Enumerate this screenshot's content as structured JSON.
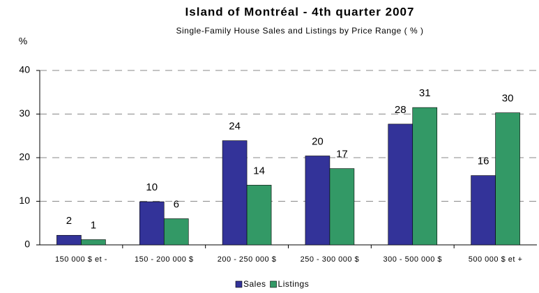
{
  "chart_data": {
    "type": "bar",
    "title": "Island of Montréal - 4th quarter 2007",
    "subtitle": "Single-Family House Sales and Listings by Price Range ( % )",
    "y_label": "%",
    "categories": [
      "150 000 $ et -",
      "150 - 200 000 $",
      "200 - 250 000 $",
      "250 - 300 000 $",
      "300 - 500 000 $",
      "500 000 $ et +"
    ],
    "series": [
      {
        "name": "Sales",
        "color": "#333399",
        "values": [
          2.2,
          9.9,
          23.9,
          20.4,
          27.7,
          15.9
        ],
        "value_labels": [
          "2",
          "10",
          "24",
          "20",
          "28",
          "16"
        ]
      },
      {
        "name": "Listings",
        "color": "#339966",
        "values": [
          1.2,
          6.0,
          13.7,
          17.5,
          31.5,
          30.3
        ],
        "value_labels": [
          "1",
          "6",
          "14",
          "17",
          "31",
          "30"
        ]
      }
    ],
    "ylim": [
      0,
      40
    ],
    "yticks": [
      0,
      10,
      20,
      30,
      40
    ],
    "grid": true,
    "legend": "bottom"
  }
}
